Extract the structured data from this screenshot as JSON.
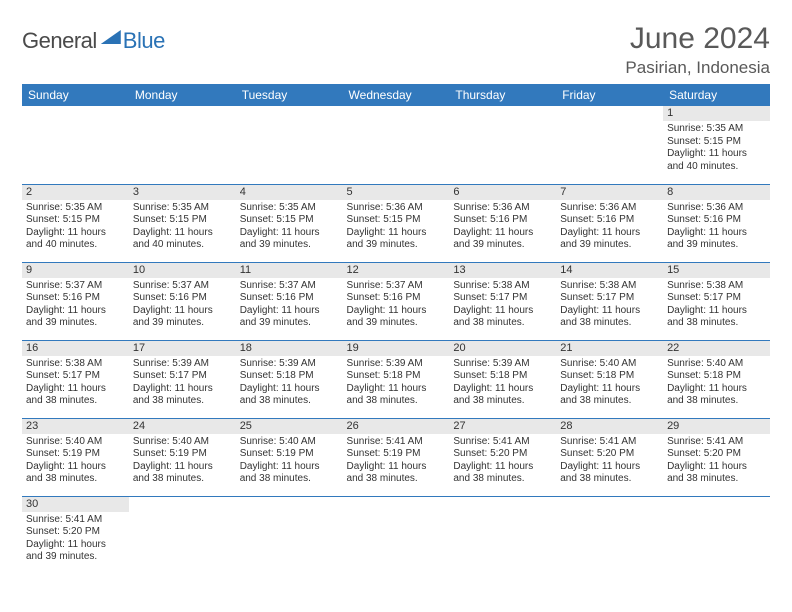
{
  "brand": {
    "word1": "General",
    "word2": "Blue"
  },
  "title": "June 2024",
  "location": "Pasirian, Indonesia",
  "colors": {
    "header_bg": "#3279bd",
    "header_text": "#ffffff",
    "cell_border": "#3279bd",
    "daynum_bg": "#e8e8e8",
    "text": "#333333",
    "title_text": "#595959",
    "brand_dark": "#4a4a4a",
    "brand_blue": "#2a72b5",
    "page_bg": "#ffffff"
  },
  "typography": {
    "title_fontsize": 30,
    "location_fontsize": 17,
    "header_fontsize": 12,
    "daynum_fontsize": 11,
    "body_fontsize": 10
  },
  "table": {
    "columns": [
      "Sunday",
      "Monday",
      "Tuesday",
      "Wednesday",
      "Thursday",
      "Friday",
      "Saturday"
    ],
    "weeks": [
      [
        null,
        null,
        null,
        null,
        null,
        null,
        {
          "day": "1",
          "sunrise": "5:35 AM",
          "sunset": "5:15 PM",
          "daylight": "11 hours and 40 minutes."
        }
      ],
      [
        {
          "day": "2",
          "sunrise": "5:35 AM",
          "sunset": "5:15 PM",
          "daylight": "11 hours and 40 minutes."
        },
        {
          "day": "3",
          "sunrise": "5:35 AM",
          "sunset": "5:15 PM",
          "daylight": "11 hours and 40 minutes."
        },
        {
          "day": "4",
          "sunrise": "5:35 AM",
          "sunset": "5:15 PM",
          "daylight": "11 hours and 39 minutes."
        },
        {
          "day": "5",
          "sunrise": "5:36 AM",
          "sunset": "5:15 PM",
          "daylight": "11 hours and 39 minutes."
        },
        {
          "day": "6",
          "sunrise": "5:36 AM",
          "sunset": "5:16 PM",
          "daylight": "11 hours and 39 minutes."
        },
        {
          "day": "7",
          "sunrise": "5:36 AM",
          "sunset": "5:16 PM",
          "daylight": "11 hours and 39 minutes."
        },
        {
          "day": "8",
          "sunrise": "5:36 AM",
          "sunset": "5:16 PM",
          "daylight": "11 hours and 39 minutes."
        }
      ],
      [
        {
          "day": "9",
          "sunrise": "5:37 AM",
          "sunset": "5:16 PM",
          "daylight": "11 hours and 39 minutes."
        },
        {
          "day": "10",
          "sunrise": "5:37 AM",
          "sunset": "5:16 PM",
          "daylight": "11 hours and 39 minutes."
        },
        {
          "day": "11",
          "sunrise": "5:37 AM",
          "sunset": "5:16 PM",
          "daylight": "11 hours and 39 minutes."
        },
        {
          "day": "12",
          "sunrise": "5:37 AM",
          "sunset": "5:16 PM",
          "daylight": "11 hours and 39 minutes."
        },
        {
          "day": "13",
          "sunrise": "5:38 AM",
          "sunset": "5:17 PM",
          "daylight": "11 hours and 38 minutes."
        },
        {
          "day": "14",
          "sunrise": "5:38 AM",
          "sunset": "5:17 PM",
          "daylight": "11 hours and 38 minutes."
        },
        {
          "day": "15",
          "sunrise": "5:38 AM",
          "sunset": "5:17 PM",
          "daylight": "11 hours and 38 minutes."
        }
      ],
      [
        {
          "day": "16",
          "sunrise": "5:38 AM",
          "sunset": "5:17 PM",
          "daylight": "11 hours and 38 minutes."
        },
        {
          "day": "17",
          "sunrise": "5:39 AM",
          "sunset": "5:17 PM",
          "daylight": "11 hours and 38 minutes."
        },
        {
          "day": "18",
          "sunrise": "5:39 AM",
          "sunset": "5:18 PM",
          "daylight": "11 hours and 38 minutes."
        },
        {
          "day": "19",
          "sunrise": "5:39 AM",
          "sunset": "5:18 PM",
          "daylight": "11 hours and 38 minutes."
        },
        {
          "day": "20",
          "sunrise": "5:39 AM",
          "sunset": "5:18 PM",
          "daylight": "11 hours and 38 minutes."
        },
        {
          "day": "21",
          "sunrise": "5:40 AM",
          "sunset": "5:18 PM",
          "daylight": "11 hours and 38 minutes."
        },
        {
          "day": "22",
          "sunrise": "5:40 AM",
          "sunset": "5:18 PM",
          "daylight": "11 hours and 38 minutes."
        }
      ],
      [
        {
          "day": "23",
          "sunrise": "5:40 AM",
          "sunset": "5:19 PM",
          "daylight": "11 hours and 38 minutes."
        },
        {
          "day": "24",
          "sunrise": "5:40 AM",
          "sunset": "5:19 PM",
          "daylight": "11 hours and 38 minutes."
        },
        {
          "day": "25",
          "sunrise": "5:40 AM",
          "sunset": "5:19 PM",
          "daylight": "11 hours and 38 minutes."
        },
        {
          "day": "26",
          "sunrise": "5:41 AM",
          "sunset": "5:19 PM",
          "daylight": "11 hours and 38 minutes."
        },
        {
          "day": "27",
          "sunrise": "5:41 AM",
          "sunset": "5:20 PM",
          "daylight": "11 hours and 38 minutes."
        },
        {
          "day": "28",
          "sunrise": "5:41 AM",
          "sunset": "5:20 PM",
          "daylight": "11 hours and 38 minutes."
        },
        {
          "day": "29",
          "sunrise": "5:41 AM",
          "sunset": "5:20 PM",
          "daylight": "11 hours and 38 minutes."
        }
      ],
      [
        {
          "day": "30",
          "sunrise": "5:41 AM",
          "sunset": "5:20 PM",
          "daylight": "11 hours and 39 minutes."
        },
        null,
        null,
        null,
        null,
        null,
        null
      ]
    ],
    "labels": {
      "sunrise": "Sunrise: ",
      "sunset": "Sunset: ",
      "daylight": "Daylight: "
    }
  }
}
